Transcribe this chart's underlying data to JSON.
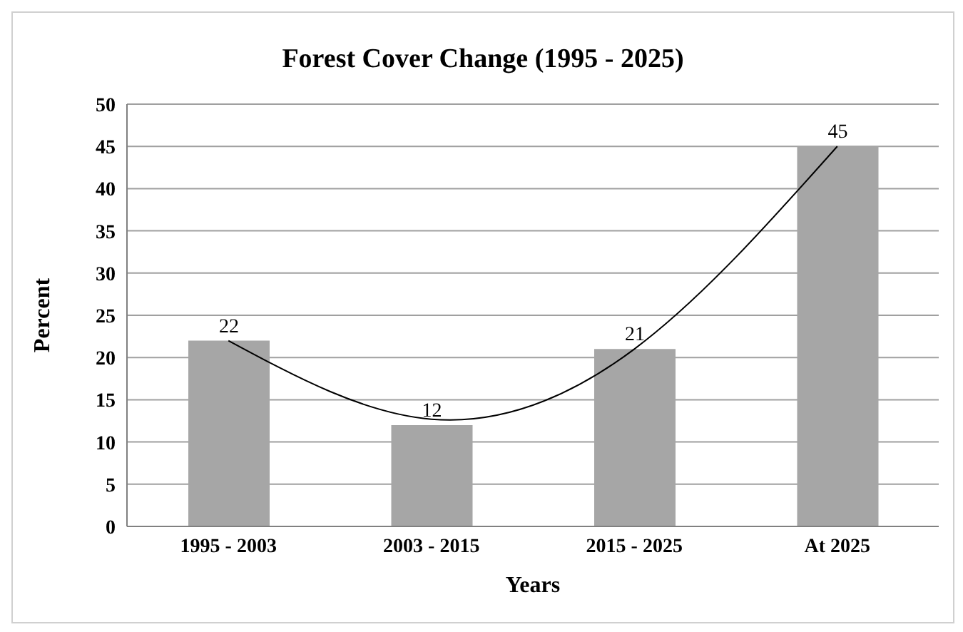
{
  "chart_data": {
    "type": "bar",
    "title": "Forest Cover Change (1995 - 2025)",
    "xlabel": "Years",
    "ylabel": "Percent",
    "categories": [
      "1995 - 2003",
      "2003 - 2015",
      "2015 - 2025",
      "At 2025"
    ],
    "series": [
      {
        "color": "#a6a6a6",
        "values": [
          22,
          12,
          21,
          45
        ],
        "value_labels": [
          "22",
          "12",
          "21",
          "45"
        ]
      },
      {
        "type": "line",
        "color": "#000000",
        "values": [
          22,
          12.7,
          21,
          45
        ]
      }
    ],
    "ylim": [
      0,
      50
    ],
    "yticks": [
      0,
      5,
      10,
      15,
      20,
      25,
      30,
      35,
      40,
      45,
      50
    ],
    "grid": "y",
    "marker": "none"
  }
}
